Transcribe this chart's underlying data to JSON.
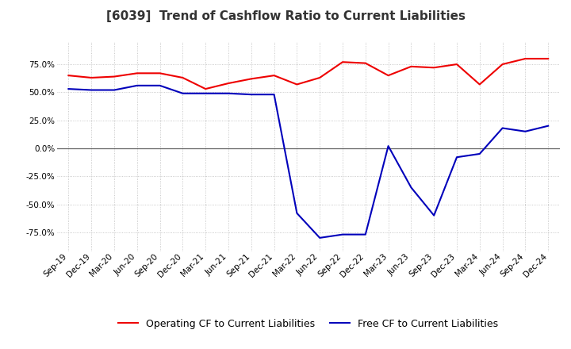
{
  "title": "[6039]  Trend of Cashflow Ratio to Current Liabilities",
  "x_labels": [
    "Sep-19",
    "Dec-19",
    "Mar-20",
    "Jun-20",
    "Sep-20",
    "Dec-20",
    "Mar-21",
    "Jun-21",
    "Sep-21",
    "Dec-21",
    "Mar-22",
    "Jun-22",
    "Sep-22",
    "Dec-22",
    "Mar-23",
    "Jun-23",
    "Sep-23",
    "Dec-23",
    "Mar-24",
    "Jun-24",
    "Sep-24",
    "Dec-24"
  ],
  "operating_cf": [
    65,
    63,
    64,
    67,
    67,
    63,
    53,
    58,
    62,
    65,
    57,
    63,
    77,
    76,
    65,
    73,
    72,
    75,
    57,
    75,
    80,
    80
  ],
  "free_cf": [
    53,
    52,
    52,
    56,
    56,
    49,
    49,
    49,
    48,
    48,
    -58,
    -80,
    -77,
    -77,
    2,
    -35,
    -60,
    -8,
    -5,
    18,
    15,
    20
  ],
  "ylim_min": -92,
  "ylim_max": 95,
  "yticks": [
    -75,
    -50,
    -25,
    0,
    25,
    50,
    75
  ],
  "operating_color": "#ee0000",
  "free_color": "#0000bb",
  "legend_operating": "Operating CF to Current Liabilities",
  "legend_free": "Free CF to Current Liabilities",
  "background_color": "#ffffff",
  "grid_color": "#bbbbbb",
  "title_fontsize": 11,
  "tick_fontsize": 7.5,
  "legend_fontsize": 9
}
